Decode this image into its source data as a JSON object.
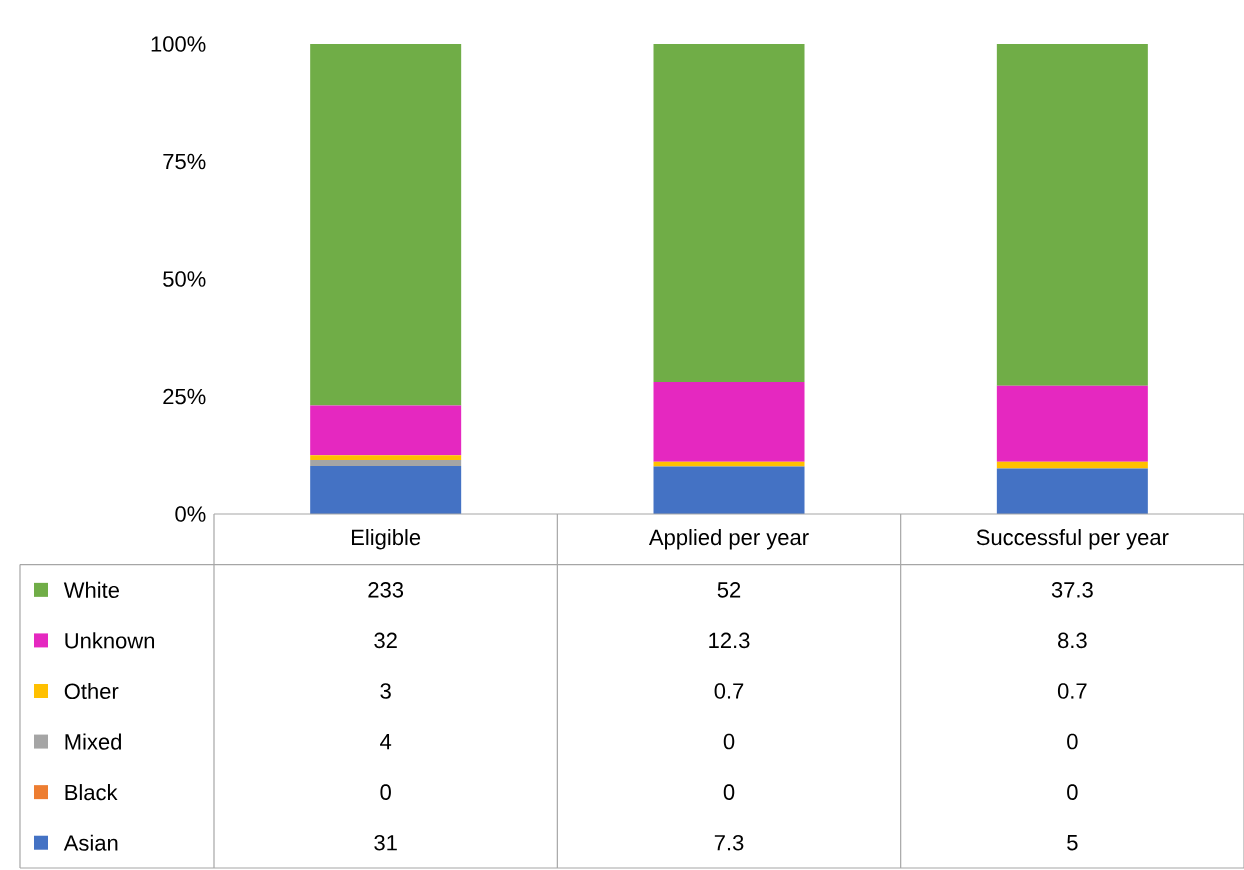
{
  "chart_data": {
    "type": "bar",
    "stacked": true,
    "legend": "bottom left",
    "categories": [
      "Eligible",
      "Applied per year",
      "Successful per year"
    ],
    "ylim": [
      0,
      100
    ],
    "yticks": [
      {
        "value": 0,
        "label": "0%"
      },
      {
        "value": 25,
        "label": "25%"
      },
      {
        "value": 50,
        "label": "50%"
      },
      {
        "value": 75,
        "label": "75%"
      },
      {
        "value": 100,
        "label": "100%"
      }
    ],
    "series": [
      {
        "name": "Asian",
        "color": "#4472c4",
        "values": [
          10.2,
          10.1,
          9.7
        ]
      },
      {
        "name": "Black",
        "color": "#ed7d31",
        "values": [
          0,
          0,
          0
        ]
      },
      {
        "name": "Mixed",
        "color": "#a5a5a5",
        "values": [
          1.3,
          0,
          0
        ]
      },
      {
        "name": "Other",
        "color": "#ffc000",
        "values": [
          1.0,
          1.0,
          1.4
        ]
      },
      {
        "name": "Unknown",
        "color": "#e528c0",
        "values": [
          10.6,
          17.0,
          16.2
        ]
      },
      {
        "name": "White",
        "color": "#70ad47",
        "values": [
          76.9,
          71.9,
          72.7
        ]
      }
    ],
    "annotations": [
      "31",
      "7.3",
      "5",
      "0",
      "0",
      "0",
      "4",
      "0",
      "0",
      "3",
      "0.7",
      "0.7",
      "32",
      "12.3",
      "8.3",
      "233",
      "52",
      "37.3"
    ]
  }
}
